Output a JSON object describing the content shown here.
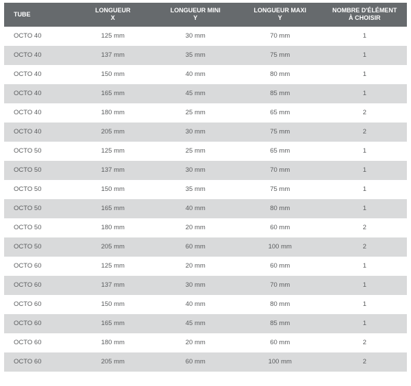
{
  "table": {
    "type": "table",
    "header_bg": "#666a6d",
    "header_color": "#ffffff",
    "row_odd_bg": "#ffffff",
    "row_even_bg": "#d9dadb",
    "text_color": "#5a5c5e",
    "header_fontsize": 9,
    "cell_fontsize": 9.5,
    "columns": [
      {
        "line1": "TUBE",
        "line2": "",
        "align": "left",
        "width_pct": 17
      },
      {
        "line1": "LONGUEUR",
        "line2": "X",
        "align": "center",
        "width_pct": 20
      },
      {
        "line1": "LONGUEUR MINI",
        "line2": "Y",
        "align": "center",
        "width_pct": 21
      },
      {
        "line1": "LONGUEUR MAXI",
        "line2": "Y",
        "align": "center",
        "width_pct": 21
      },
      {
        "line1": "NOMBRE D'ÉLÉMENT",
        "line2": "À CHOISIR",
        "align": "center",
        "width_pct": 21
      }
    ],
    "rows": [
      [
        "OCTO 40",
        "125 mm",
        "30 mm",
        "70 mm",
        "1"
      ],
      [
        "OCTO 40",
        "137 mm",
        "35 mm",
        "75 mm",
        "1"
      ],
      [
        "OCTO 40",
        "150 mm",
        "40 mm",
        "80 mm",
        "1"
      ],
      [
        "OCTO 40",
        "165 mm",
        "45 mm",
        "85 mm",
        "1"
      ],
      [
        "OCTO 40",
        "180 mm",
        "25 mm",
        "65 mm",
        "2"
      ],
      [
        "OCTO 40",
        "205 mm",
        "30 mm",
        "75 mm",
        "2"
      ],
      [
        "OCTO 50",
        "125 mm",
        "25 mm",
        "65 mm",
        "1"
      ],
      [
        "OCTO 50",
        "137 mm",
        "30 mm",
        "70 mm",
        "1"
      ],
      [
        "OCTO 50",
        "150 mm",
        "35 mm",
        "75 mm",
        "1"
      ],
      [
        "OCTO 50",
        "165 mm",
        "40 mm",
        "80 mm",
        "1"
      ],
      [
        "OCTO 50",
        "180 mm",
        "20 mm",
        "60 mm",
        "2"
      ],
      [
        "OCTO 50",
        "205 mm",
        "60 mm",
        "100 mm",
        "2"
      ],
      [
        "OCTO 60",
        "125 mm",
        "20 mm",
        "60 mm",
        "1"
      ],
      [
        "OCTO 60",
        "137 mm",
        "30 mm",
        "70 mm",
        "1"
      ],
      [
        "OCTO 60",
        "150 mm",
        "40 mm",
        "80 mm",
        "1"
      ],
      [
        "OCTO 60",
        "165 mm",
        "45 mm",
        "85 mm",
        "1"
      ],
      [
        "OCTO 60",
        "180 mm",
        "20 mm",
        "60 mm",
        "2"
      ],
      [
        "OCTO 60",
        "205 mm",
        "60 mm",
        "100 mm",
        "2"
      ]
    ]
  }
}
